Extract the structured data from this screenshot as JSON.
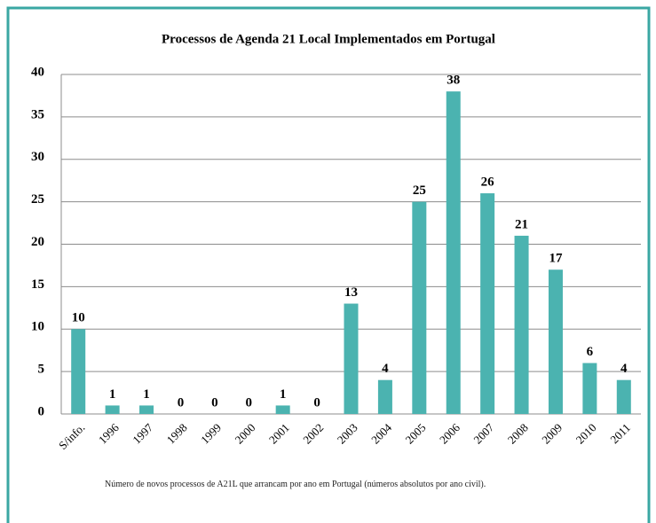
{
  "chart_data": {
    "type": "bar",
    "title": "Processos de Agenda 21 Local Implementados em Portugal",
    "categories": [
      "S/info.",
      "1996",
      "1997",
      "1998",
      "1999",
      "2000",
      "2001",
      "2002",
      "2003",
      "2004",
      "2005",
      "2006",
      "2007",
      "2008",
      "2009",
      "2010",
      "2011"
    ],
    "values": [
      10,
      1,
      1,
      0,
      0,
      0,
      1,
      0,
      13,
      4,
      25,
      38,
      26,
      21,
      17,
      6,
      4
    ],
    "color": "#4bb3b0",
    "ylim": [
      0,
      40
    ],
    "yticks": [
      0,
      5,
      10,
      15,
      20,
      25,
      30,
      35,
      40
    ],
    "grid": true,
    "footnote": "Número de novos processos de A21L que arrancam por ano em Portugal (números absolutos por ano civil)."
  }
}
